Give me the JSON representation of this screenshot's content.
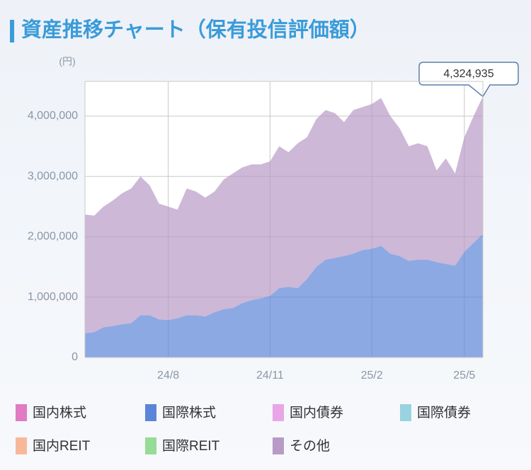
{
  "chart_data": {
    "type": "stacked_area",
    "title": "資産推移チャート（保有投信評価額）",
    "y_unit_label": "(円)",
    "categories": [
      "",
      "",
      "",
      "",
      "",
      "",
      "",
      "",
      "",
      "24/8",
      "",
      "",
      "",
      "",
      "",
      "",
      "",
      "",
      "",
      "",
      "24/11",
      "",
      "",
      "",
      "",
      "",
      "",
      "",
      "",
      "",
      "",
      "25/2",
      "",
      "",
      "",
      "",
      "",
      "",
      "",
      "",
      "",
      "25/5",
      "",
      ""
    ],
    "ylim": [
      0,
      4575000
    ],
    "yticks": [
      0,
      {
        "value": 1000000,
        "label": "1,000,000"
      },
      {
        "value": 2000000,
        "label": "2,000,000"
      },
      {
        "value": 3000000,
        "label": "3,000,000"
      },
      {
        "value": 4000000,
        "label": "4,000,000"
      }
    ],
    "grid": true,
    "annotation": {
      "value": 4324935,
      "label": "4,324,935"
    },
    "series": [
      {
        "name": "国内株式",
        "color": "#e07bc4",
        "values": [
          0,
          0,
          0,
          0,
          0,
          0,
          0,
          0,
          0,
          0,
          0,
          0,
          0,
          0,
          0,
          0,
          0,
          0,
          0,
          0,
          0,
          0,
          0,
          0,
          0,
          0,
          0,
          0,
          0,
          0,
          0,
          0,
          0,
          0,
          0,
          0,
          0,
          0,
          0,
          0,
          0,
          0,
          0,
          0
        ]
      },
      {
        "name": "国際株式",
        "color": "#5b85d9",
        "values": [
          400000,
          420000,
          500000,
          520000,
          550000,
          570000,
          700000,
          700000,
          630000,
          620000,
          650000,
          700000,
          700000,
          680000,
          750000,
          800000,
          820000,
          900000,
          950000,
          980000,
          1020000,
          1150000,
          1170000,
          1150000,
          1300000,
          1500000,
          1620000,
          1650000,
          1680000,
          1720000,
          1780000,
          1800000,
          1850000,
          1720000,
          1680000,
          1600000,
          1620000,
          1620000,
          1580000,
          1550000,
          1520000,
          1750000,
          1900000,
          2050000
        ]
      },
      {
        "name": "国内債券",
        "color": "#e8a6e6",
        "values": [
          0,
          0,
          0,
          0,
          0,
          0,
          0,
          0,
          0,
          0,
          0,
          0,
          0,
          0,
          0,
          0,
          0,
          0,
          0,
          0,
          0,
          0,
          0,
          0,
          0,
          0,
          0,
          0,
          0,
          0,
          0,
          0,
          0,
          0,
          0,
          0,
          0,
          0,
          0,
          0,
          0,
          0,
          0,
          0
        ]
      },
      {
        "name": "国際債券",
        "color": "#99d3df",
        "values": [
          0,
          0,
          0,
          0,
          0,
          0,
          0,
          0,
          0,
          0,
          0,
          0,
          0,
          0,
          0,
          0,
          0,
          0,
          0,
          0,
          0,
          0,
          0,
          0,
          0,
          0,
          0,
          0,
          0,
          0,
          0,
          0,
          0,
          0,
          0,
          0,
          0,
          0,
          0,
          0,
          0,
          0,
          0,
          0
        ]
      },
      {
        "name": "国内REIT",
        "color": "#f7b89a",
        "values": [
          0,
          0,
          0,
          0,
          0,
          0,
          0,
          0,
          0,
          0,
          0,
          0,
          0,
          0,
          0,
          0,
          0,
          0,
          0,
          0,
          0,
          0,
          0,
          0,
          0,
          0,
          0,
          0,
          0,
          0,
          0,
          0,
          0,
          0,
          0,
          0,
          0,
          0,
          0,
          0,
          0,
          0,
          0,
          0
        ]
      },
      {
        "name": "国際REIT",
        "color": "#96db96",
        "values": [
          0,
          0,
          0,
          0,
          0,
          0,
          0,
          0,
          0,
          0,
          0,
          0,
          0,
          0,
          0,
          0,
          0,
          0,
          0,
          0,
          0,
          0,
          0,
          0,
          0,
          0,
          0,
          0,
          0,
          0,
          0,
          0,
          0,
          0,
          0,
          0,
          0,
          0,
          0,
          0,
          0,
          0,
          0,
          0
        ]
      },
      {
        "name": "その他",
        "color": "#b89ac6",
        "values": [
          1970000,
          1930000,
          2000000,
          2080000,
          2170000,
          2230000,
          2300000,
          2150000,
          1920000,
          1880000,
          1800000,
          2100000,
          2050000,
          1970000,
          2000000,
          2150000,
          2230000,
          2250000,
          2250000,
          2220000,
          2230000,
          2350000,
          2230000,
          2400000,
          2350000,
          2450000,
          2480000,
          2400000,
          2220000,
          2380000,
          2370000,
          2400000,
          2450000,
          2280000,
          2120000,
          1900000,
          1930000,
          1880000,
          1520000,
          1750000,
          1530000,
          1900000,
          2100000,
          2274935
        ]
      }
    ]
  }
}
